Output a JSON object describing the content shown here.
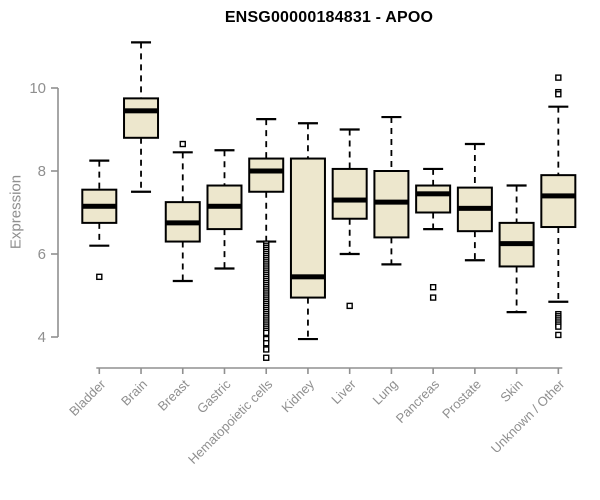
{
  "chart_data": {
    "type": "boxplot",
    "title": "ENSG00000184831 - APOO",
    "ylabel": "Expression",
    "xlabel": "",
    "y_ticks": [
      4,
      6,
      8,
      10
    ],
    "y_axis_range": [
      4,
      10
    ],
    "grid": "off",
    "legend": "none",
    "colors": {
      "box_fill": "#ede7cd",
      "box_stroke": "#000000",
      "median": "#000000",
      "whisker": "#000000",
      "axis": "#909090",
      "tick_label": "#8f8f8f",
      "title": "#000000"
    },
    "categories": [
      "Bladder",
      "Brain",
      "Breast",
      "Gastric",
      "Hematopoietic cells",
      "Kidney",
      "Liver",
      "Lung",
      "Pancreas",
      "Prostate",
      "Skin",
      "Unknown / Other"
    ],
    "series": [
      {
        "name": "Bladder",
        "whisker_low": 6.2,
        "q1": 6.75,
        "median": 7.15,
        "q3": 7.55,
        "whisker_high": 8.25,
        "outliers": [
          5.45
        ]
      },
      {
        "name": "Brain",
        "whisker_low": 7.5,
        "q1": 8.8,
        "median": 9.45,
        "q3": 9.75,
        "whisker_high": 11.1,
        "outliers": []
      },
      {
        "name": "Breast",
        "whisker_low": 5.35,
        "q1": 6.3,
        "median": 6.75,
        "q3": 7.25,
        "whisker_high": 8.45,
        "outliers": [
          8.65
        ]
      },
      {
        "name": "Gastric",
        "whisker_low": 5.65,
        "q1": 6.6,
        "median": 7.15,
        "q3": 7.65,
        "whisker_high": 8.5,
        "outliers": []
      },
      {
        "name": "Hematopoietic cells",
        "whisker_low": 6.3,
        "q1": 7.5,
        "median": 8.0,
        "q3": 8.3,
        "whisker_high": 9.25,
        "outliers": [
          6.25,
          6.2,
          6.15,
          6.1,
          6.05,
          6.0,
          5.95,
          5.9,
          5.85,
          5.8,
          5.75,
          5.7,
          5.65,
          5.6,
          5.55,
          5.5,
          5.45,
          5.4,
          5.35,
          5.3,
          5.25,
          5.2,
          5.15,
          5.1,
          5.05,
          5.0,
          4.95,
          4.9,
          4.85,
          4.8,
          4.75,
          4.7,
          4.65,
          4.6,
          4.55,
          4.5,
          4.45,
          4.4,
          4.35,
          4.3,
          4.25,
          4.2,
          4.15,
          4.1,
          3.95,
          3.85,
          3.7,
          3.5
        ]
      },
      {
        "name": "Kidney",
        "whisker_low": 3.95,
        "q1": 4.95,
        "median": 5.45,
        "q3": 8.3,
        "whisker_high": 9.15,
        "outliers": []
      },
      {
        "name": "Liver",
        "whisker_low": 6.0,
        "q1": 6.85,
        "median": 7.3,
        "q3": 8.05,
        "whisker_high": 9.0,
        "outliers": [
          4.75
        ]
      },
      {
        "name": "Lung",
        "whisker_low": 5.75,
        "q1": 6.4,
        "median": 7.25,
        "q3": 8.0,
        "whisker_high": 9.3,
        "outliers": []
      },
      {
        "name": "Pancreas",
        "whisker_low": 6.6,
        "q1": 7.0,
        "median": 7.45,
        "q3": 7.65,
        "whisker_high": 8.05,
        "outliers": [
          5.2,
          4.95
        ]
      },
      {
        "name": "Prostate",
        "whisker_low": 5.85,
        "q1": 6.55,
        "median": 7.1,
        "q3": 7.6,
        "whisker_high": 8.65,
        "outliers": []
      },
      {
        "name": "Skin",
        "whisker_low": 4.6,
        "q1": 5.7,
        "median": 6.25,
        "q3": 6.75,
        "whisker_high": 7.65,
        "outliers": []
      },
      {
        "name": "Unknown / Other",
        "whisker_low": 4.85,
        "q1": 6.65,
        "median": 7.4,
        "q3": 7.9,
        "whisker_high": 9.55,
        "outliers": [
          10.25,
          9.9,
          9.85,
          4.55,
          4.5,
          4.45,
          4.4,
          4.35,
          4.3,
          4.25,
          4.05
        ]
      }
    ]
  }
}
